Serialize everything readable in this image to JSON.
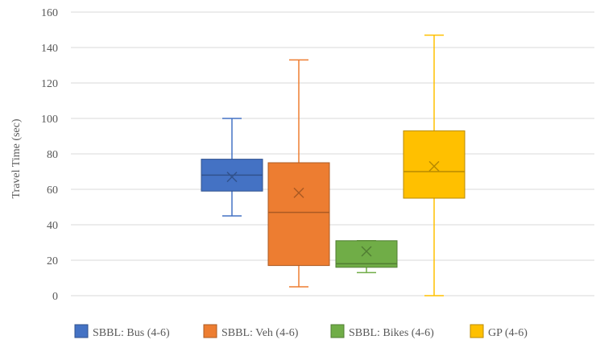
{
  "chart_data": {
    "type": "box",
    "title": "",
    "xlabel": "",
    "ylabel": "Travel Time (sec)",
    "ylim": [
      0,
      160
    ],
    "yticks": [
      0,
      20,
      40,
      60,
      80,
      100,
      120,
      140,
      160
    ],
    "grid": true,
    "legend_position": "bottom",
    "series": [
      {
        "name": "SBBL: Bus (4-6)",
        "color": "#4472C4",
        "min": 45,
        "q1": 59,
        "median": 68,
        "q3": 77,
        "max": 100,
        "mean": 67
      },
      {
        "name": "SBBL: Veh (4-6)",
        "color": "#ED7D31",
        "min": 5,
        "q1": 17,
        "median": 47,
        "q3": 75,
        "max": 133,
        "mean": 58
      },
      {
        "name": "SBBL: Bikes (4-6)",
        "color": "#70AD47",
        "min": 13,
        "q1": 16,
        "median": 18,
        "q3": 31,
        "max": 31,
        "mean": 25
      },
      {
        "name": "GP (4-6)",
        "color": "#FFC000",
        "min": 0,
        "q1": 55,
        "median": 70,
        "q3": 93,
        "max": 147,
        "mean": 73
      }
    ]
  }
}
